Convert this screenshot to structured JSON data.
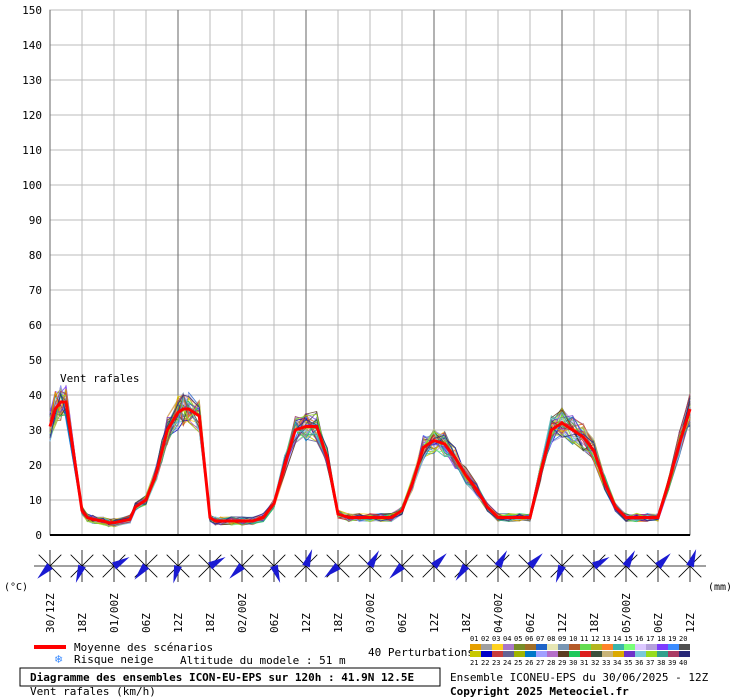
{
  "chart_data": {
    "type": "line",
    "title": "Diagramme des ensembles ICON-EU-EPS sur 120h : 41.9N 12.5E",
    "annotation": "Vent rafales",
    "ylabel": "Vent rafales (km/h)",
    "ylim": [
      0,
      150
    ],
    "yticks": [
      0,
      10,
      20,
      30,
      40,
      50,
      60,
      70,
      80,
      90,
      100,
      110,
      120,
      130,
      140,
      150
    ],
    "x_hours_range": [
      0,
      120
    ],
    "x_ticks": [
      {
        "h": 0,
        "label": "30/12Z"
      },
      {
        "h": 6,
        "label": "18Z"
      },
      {
        "h": 12,
        "label": "01/00Z"
      },
      {
        "h": 18,
        "label": "06Z"
      },
      {
        "h": 24,
        "label": "12Z"
      },
      {
        "h": 30,
        "label": "18Z"
      },
      {
        "h": 36,
        "label": "02/00Z"
      },
      {
        "h": 42,
        "label": "06Z"
      },
      {
        "h": 48,
        "label": "12Z"
      },
      {
        "h": 54,
        "label": "18Z"
      },
      {
        "h": 60,
        "label": "03/00Z"
      },
      {
        "h": 66,
        "label": "06Z"
      },
      {
        "h": 72,
        "label": "12Z"
      },
      {
        "h": 78,
        "label": "18Z"
      },
      {
        "h": 84,
        "label": "04/00Z"
      },
      {
        "h": 90,
        "label": "06Z"
      },
      {
        "h": 96,
        "label": "12Z"
      },
      {
        "h": 102,
        "label": "18Z"
      },
      {
        "h": 108,
        "label": "05/00Z"
      },
      {
        "h": 114,
        "label": "06Z"
      },
      {
        "h": 120,
        "label": "12Z"
      }
    ],
    "grid": true,
    "series": [
      {
        "name": "Moyenne des scénarios",
        "color": "#ff0000",
        "x": [
          0,
          1,
          2,
          3,
          6,
          7,
          8,
          10,
          11,
          12,
          15,
          16,
          18,
          20,
          21,
          22,
          24,
          25,
          26,
          28,
          30,
          31,
          32,
          34,
          36,
          38,
          40,
          42,
          44,
          46,
          48,
          50,
          52,
          54,
          56,
          58,
          60,
          62,
          64,
          66,
          68,
          70,
          72,
          74,
          76,
          78,
          80,
          82,
          84,
          86,
          88,
          90,
          92,
          94,
          96,
          98,
          100,
          102,
          104,
          106,
          108,
          110,
          112,
          114,
          116,
          118,
          120
        ],
        "y": [
          31,
          36,
          38,
          38,
          7,
          5,
          4.5,
          4,
          3.5,
          3.5,
          4.5,
          8,
          10,
          18,
          24,
          30,
          35,
          36,
          36,
          34,
          5,
          4,
          4,
          4,
          4,
          4,
          5,
          9,
          20,
          30,
          31,
          31,
          22,
          6,
          5,
          5,
          5,
          5,
          5,
          7,
          15,
          25,
          27,
          26,
          22,
          17,
          13,
          8,
          5,
          5,
          5,
          5,
          18,
          30,
          32,
          30,
          28,
          24,
          15,
          8,
          5,
          5,
          5,
          5,
          15,
          26,
          36
        ]
      }
    ],
    "left_unit": "(°C)",
    "right_unit": "(mm)",
    "legend": {
      "mean_label": "Moyenne des scénarios",
      "snow_label": "Risque neige",
      "altitude": "Altitude du modele : 51 m",
      "perturbations_label": "40 Perturbations",
      "perturbation_numbers": [
        "01",
        "02",
        "03",
        "04",
        "05",
        "06",
        "07",
        "08",
        "09",
        "10",
        "11",
        "12",
        "13",
        "14",
        "15",
        "16",
        "17",
        "18",
        "19",
        "20",
        "21",
        "22",
        "23",
        "24",
        "25",
        "26",
        "27",
        "28",
        "29",
        "30",
        "31",
        "32",
        "33",
        "34",
        "35",
        "36",
        "37",
        "38",
        "39",
        "40"
      ],
      "perturbation_colors": [
        "#e6a000",
        "#a0a0a0",
        "#ffd21e",
        "#aa78c8",
        "#788c28",
        "#a06e28",
        "#1e64c8",
        "#e6e6b4",
        "#7896b4",
        "#b45a28",
        "#64dc50",
        "#b4b41e",
        "#ff8228",
        "#3cb4aa",
        "#78ff78",
        "#dcc8ff",
        "#b4a0dc",
        "#7c3cff",
        "#3c8cff",
        "#505050",
        "#c8c800",
        "#0000c8",
        "#c83c3c",
        "#646496",
        "#a0b400",
        "#0078c8",
        "#a0a0ff",
        "#b46ec8",
        "#5a3c1e",
        "#1ec85a",
        "#dc1e1e",
        "#3c503c",
        "#c8b478",
        "#dcaa00",
        "#6e32c8",
        "#78c8dc",
        "#96dc1e",
        "#32a08c",
        "#aa3c64",
        "#282878"
      ]
    },
    "footer": {
      "ensemble": "Ensemble ICONEU-EPS du 30/06/2025 - 12Z",
      "copyright": "Copyright 2025 Meteociel.fr"
    }
  },
  "wind_directions_deg": [
    225,
    200,
    60,
    220,
    195,
    60,
    225,
    160,
    20,
    230,
    30,
    225,
    45,
    215,
    30,
    45,
    200,
    60,
    30,
    45,
    20
  ]
}
